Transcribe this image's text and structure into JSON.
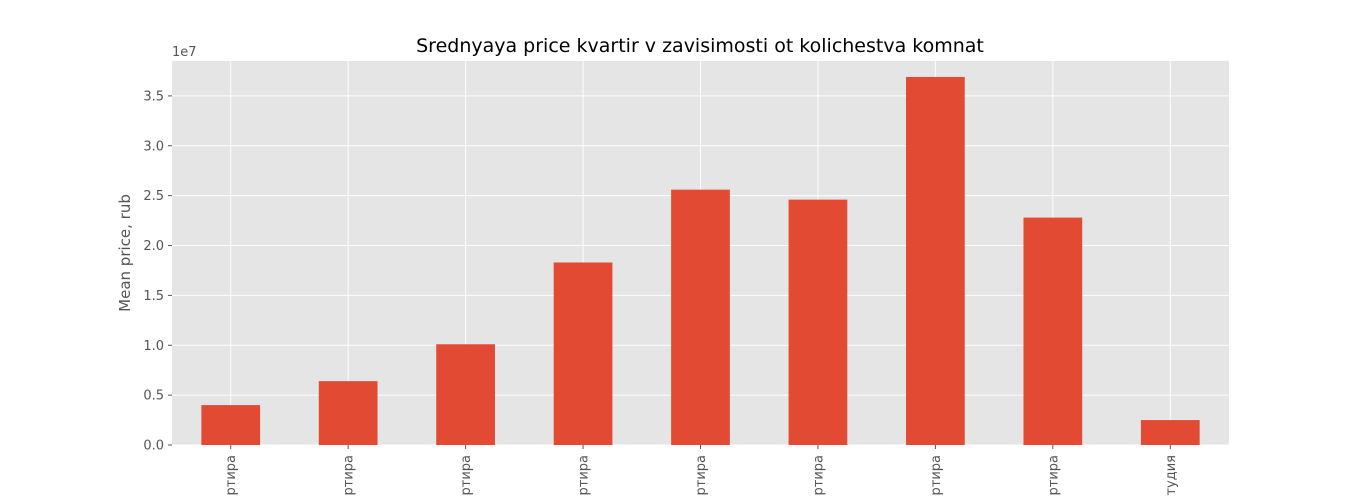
{
  "chart_data": {
    "type": "bar",
    "title": "Srednyaya price kvartir v zavisimosti ot kolichestva komnat",
    "xlabel": "",
    "ylabel": "Mean price, rub",
    "offset_label": "1e7",
    "ylim": [
      0,
      3.85
    ],
    "yticks": [
      0.0,
      0.5,
      1.0,
      1.5,
      2.0,
      2.5,
      3.0,
      3.5
    ],
    "ytick_labels": [
      "0.0",
      "0.5",
      "1.0",
      "1.5",
      "2.0",
      "2.5",
      "3.0",
      "3.5"
    ],
    "categories": [
      "ртира",
      "ртира",
      "ртира",
      "ртира",
      "ртира",
      "ртира",
      "ртира",
      "ртира",
      "тудия"
    ],
    "values": [
      0.4,
      0.64,
      1.01,
      1.83,
      2.56,
      2.46,
      3.69,
      2.28,
      0.25
    ],
    "grid": true,
    "colors": {
      "bar": "#e24a33",
      "plot_bg": "#e5e5e5",
      "grid": "#ffffff"
    }
  }
}
